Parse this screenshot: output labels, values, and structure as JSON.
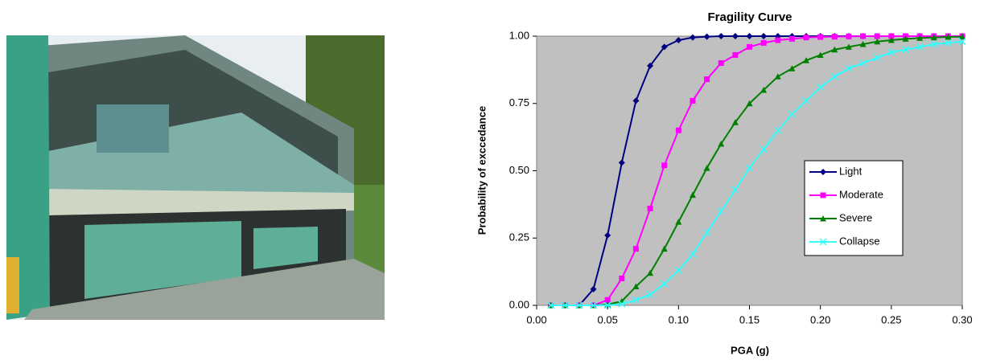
{
  "chart_data": {
    "type": "line",
    "title": "Fragility Curve",
    "x_label": "PGA (g)",
    "y_label": "Probability of exccedance",
    "x": [
      0.01,
      0.02,
      0.03,
      0.04,
      0.05,
      0.06,
      0.07,
      0.08,
      0.09,
      0.1,
      0.11,
      0.12,
      0.13,
      0.14,
      0.15,
      0.16,
      0.17,
      0.18,
      0.19,
      0.2,
      0.21,
      0.22,
      0.23,
      0.24,
      0.25,
      0.26,
      0.27,
      0.28,
      0.29,
      0.3
    ],
    "series": [
      {
        "name": "Light",
        "color": "#000080",
        "marker": "diamond",
        "values": [
          0,
          0,
          0,
          0.06,
          0.26,
          0.53,
          0.76,
          0.89,
          0.96,
          0.985,
          0.995,
          0.998,
          1,
          1,
          1,
          1,
          1,
          1,
          1,
          1,
          1,
          1,
          1,
          1,
          1,
          1,
          1,
          1,
          1,
          1
        ]
      },
      {
        "name": "Moderate",
        "color": "#ff00ff",
        "marker": "square",
        "values": [
          0,
          0,
          0,
          0,
          0.02,
          0.1,
          0.21,
          0.36,
          0.52,
          0.65,
          0.76,
          0.84,
          0.9,
          0.93,
          0.96,
          0.975,
          0.985,
          0.99,
          0.995,
          0.997,
          0.998,
          0.999,
          1,
          1,
          1,
          1,
          1,
          1,
          1,
          1
        ]
      },
      {
        "name": "Severe",
        "color": "#008000",
        "marker": "triangle",
        "values": [
          0,
          0,
          0,
          0,
          0.003,
          0.015,
          0.07,
          0.12,
          0.21,
          0.31,
          0.41,
          0.51,
          0.6,
          0.68,
          0.75,
          0.8,
          0.85,
          0.88,
          0.91,
          0.93,
          0.95,
          0.96,
          0.97,
          0.98,
          0.985,
          0.99,
          0.993,
          0.995,
          0.997,
          0.998
        ]
      },
      {
        "name": "Collapse",
        "color": "#33ffff",
        "marker": "x",
        "values": [
          0,
          0,
          0,
          0,
          0,
          0.005,
          0.02,
          0.04,
          0.08,
          0.13,
          0.19,
          0.27,
          0.35,
          0.43,
          0.51,
          0.58,
          0.65,
          0.71,
          0.76,
          0.81,
          0.85,
          0.88,
          0.9,
          0.92,
          0.94,
          0.95,
          0.96,
          0.97,
          0.975,
          0.98
        ]
      }
    ],
    "xlim": [
      0,
      0.3
    ],
    "ylim": [
      0,
      1
    ],
    "xticks": [
      {
        "value": 0,
        "label": "0.00"
      },
      {
        "value": 0.05,
        "label": "0.05"
      },
      {
        "value": 0.1,
        "label": "0.10"
      },
      {
        "value": 0.15,
        "label": "0.15"
      },
      {
        "value": 0.2,
        "label": "0.20"
      },
      {
        "value": 0.25,
        "label": "0.25"
      },
      {
        "value": 0.3,
        "label": "0.30"
      }
    ],
    "yticks": [
      {
        "value": 0,
        "label": "0.00"
      },
      {
        "value": 0.25,
        "label": "0.25"
      },
      {
        "value": 0.5,
        "label": "0.50"
      },
      {
        "value": 0.75,
        "label": "0.75"
      },
      {
        "value": 1,
        "label": "1.00"
      }
    ],
    "plot_background": "#c0c0c0",
    "grid": false,
    "legend": "right"
  }
}
